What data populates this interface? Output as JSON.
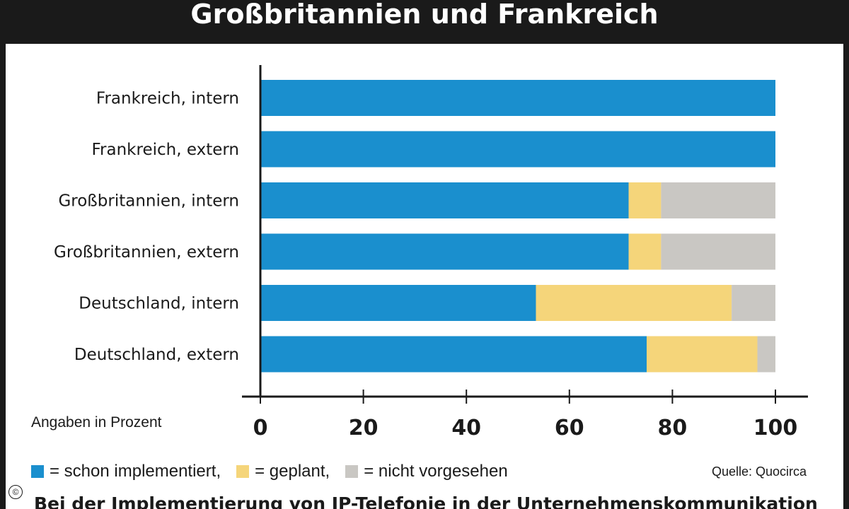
{
  "header": {
    "title": "Großbritannien und Frankreich"
  },
  "chart_data": {
    "type": "bar",
    "orientation": "horizontal",
    "stacked": true,
    "categories": [
      "Frankreich, intern",
      "Frankreich, extern",
      "Großbritannien, intern",
      "Großbritannien, extern",
      "Deutschland, intern",
      "Deutschland, extern"
    ],
    "series": [
      {
        "name": "schon implementiert",
        "color": "#1a8fce",
        "values": [
          100,
          100,
          71.5,
          71.5,
          53.5,
          75
        ]
      },
      {
        "name": "geplant",
        "color": "#f5d57a",
        "values": [
          0,
          0,
          6.3,
          6.3,
          38,
          21.5
        ]
      },
      {
        "name": "nicht vorgesehen",
        "color": "#c9c7c3",
        "values": [
          0,
          0,
          22.2,
          22.2,
          8.5,
          3.5
        ]
      }
    ],
    "xlim": [
      0,
      100
    ],
    "xticks": [
      0,
      20,
      40,
      60,
      80,
      100
    ],
    "xlabel": "Angaben in Prozent",
    "grid": false,
    "legend_position": "bottom"
  },
  "legend": {
    "items": [
      {
        "label": "= schon implementiert,",
        "color": "#1a8fce"
      },
      {
        "label": "= geplant,",
        "color": "#f5d57a"
      },
      {
        "label": "= nicht vorgesehen",
        "color": "#c9c7c3"
      }
    ]
  },
  "source": "Quelle: Quocirca",
  "copyright_symbol": "©",
  "caption": "Bei der Implementierung von IP-Telefonie in der Unternehmenskommunikation"
}
